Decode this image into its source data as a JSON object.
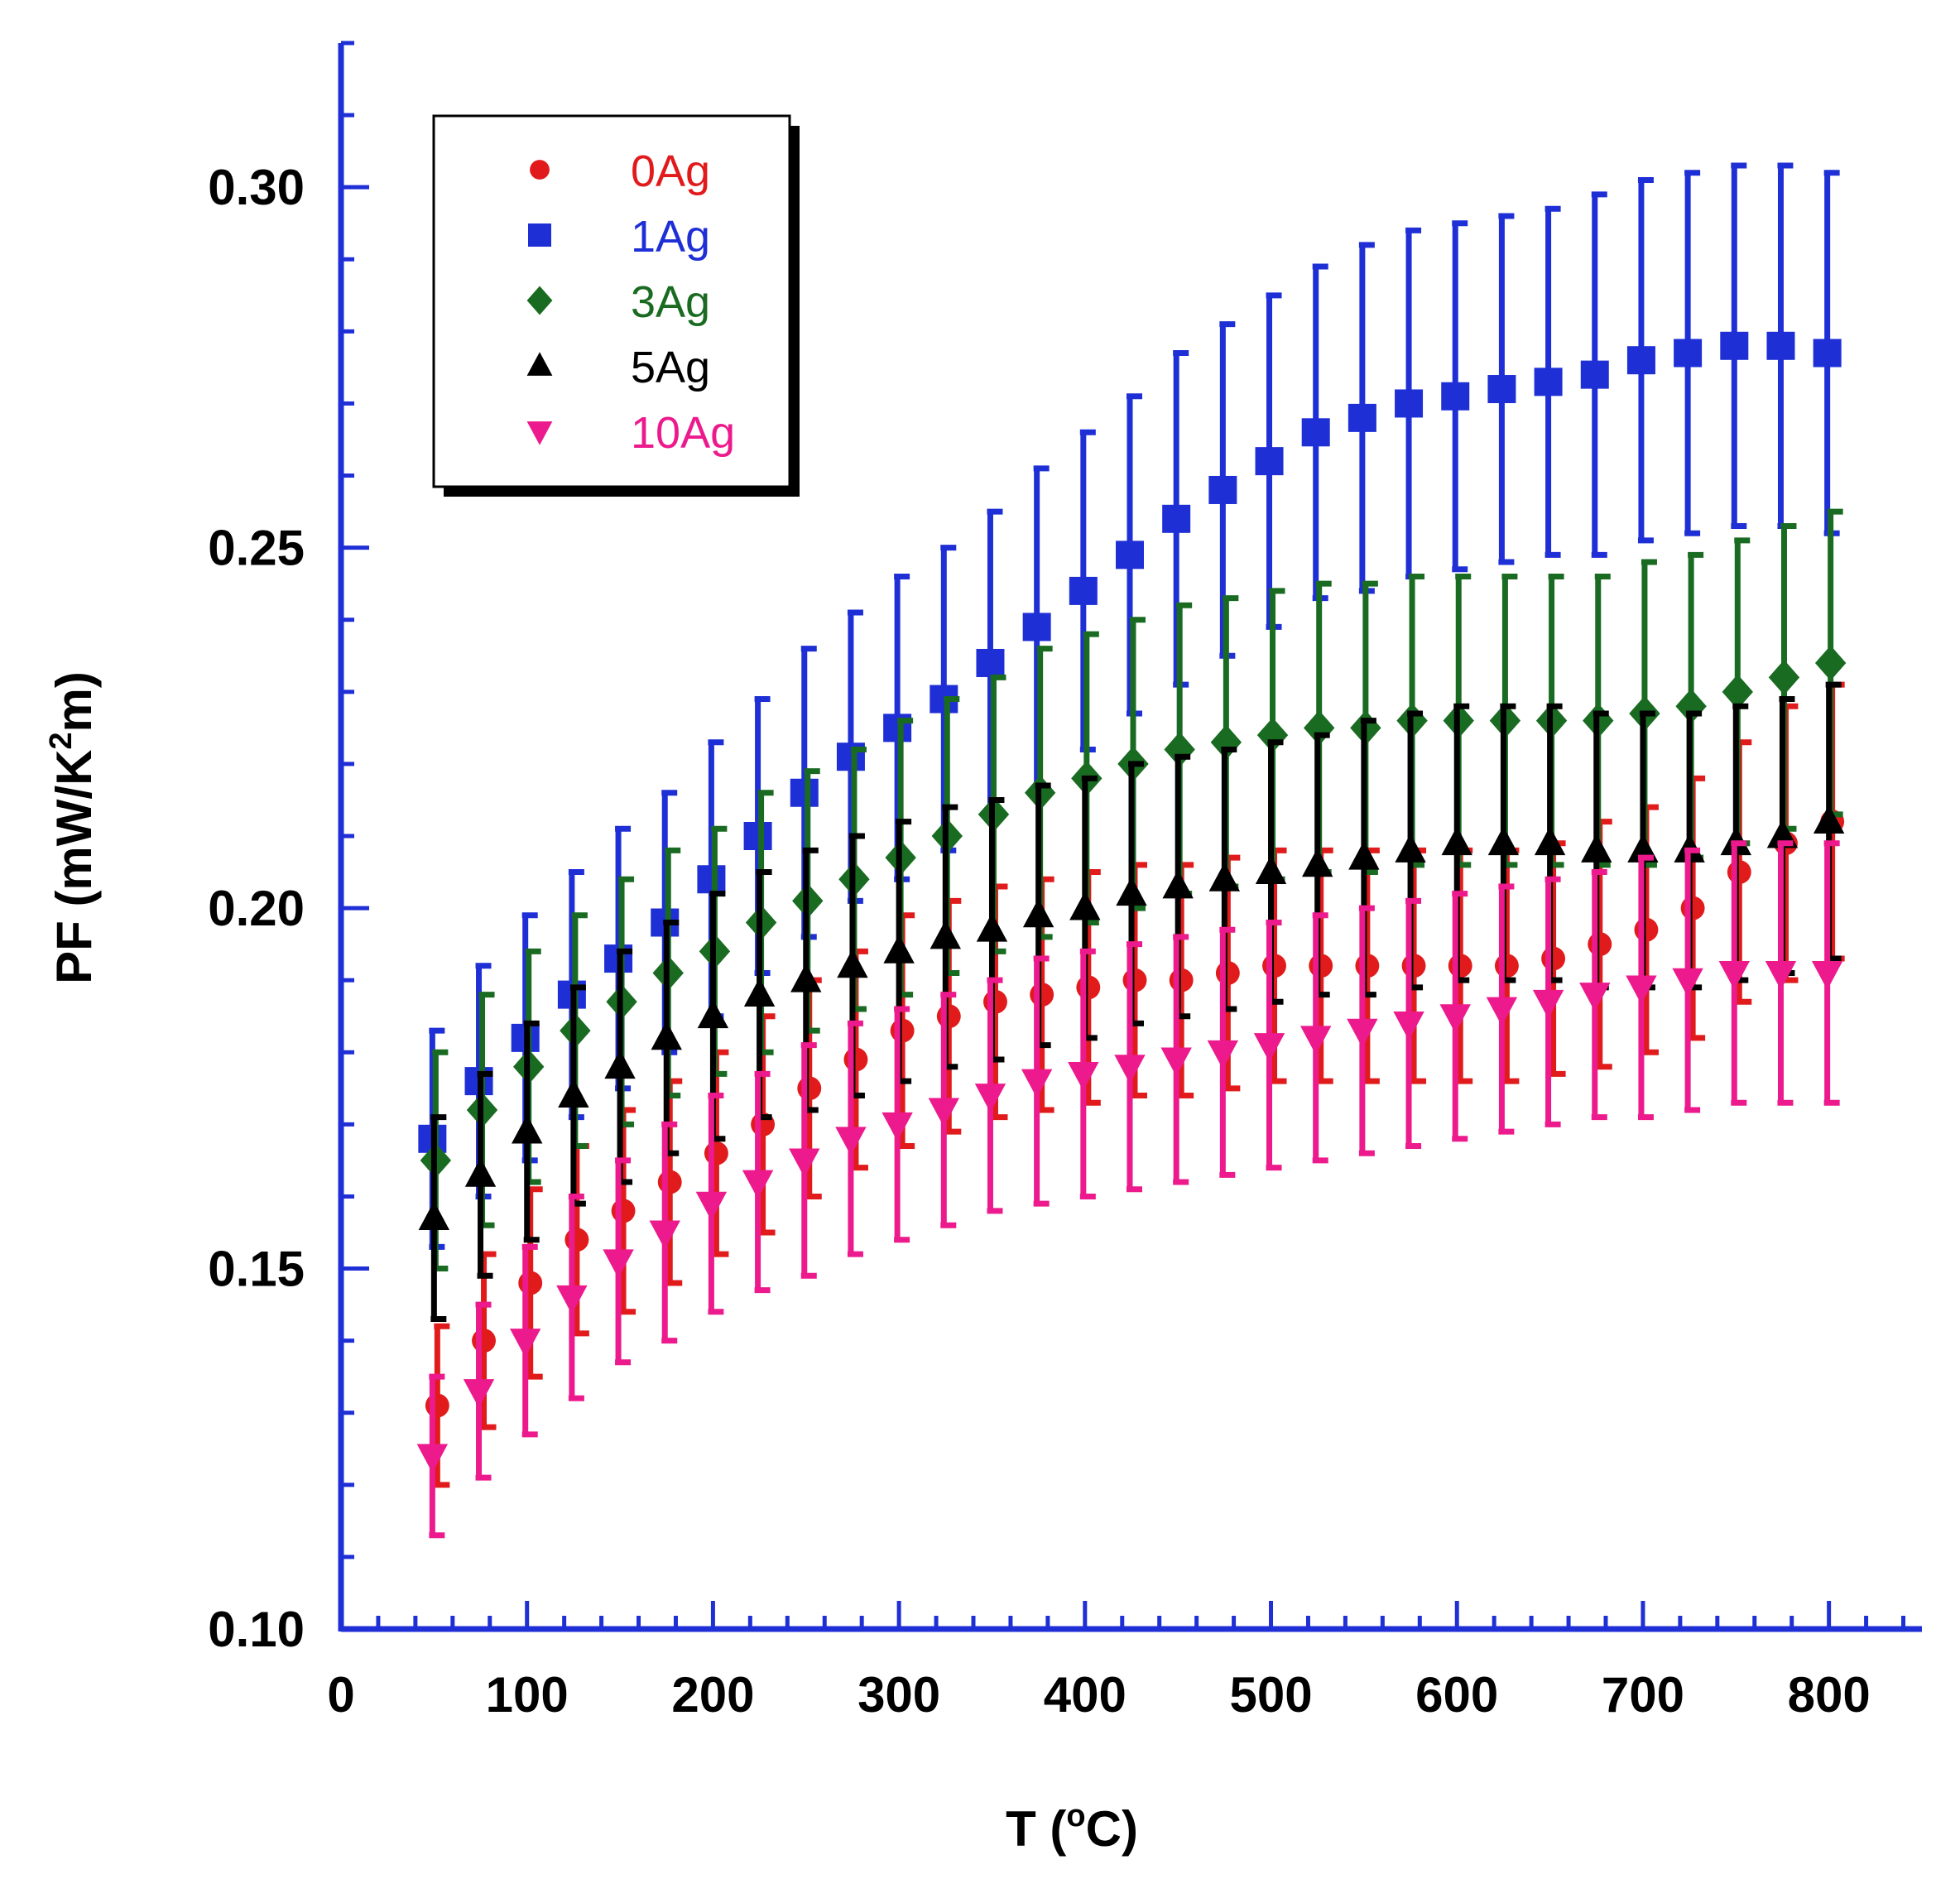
{
  "chart_data": {
    "type": "scatter",
    "title": "",
    "xlabel": {
      "base": "T (",
      "sup": "o",
      "rest": "C)"
    },
    "ylabel": {
      "base": "PF (mW/K",
      "sup": "2",
      "rest": "m)"
    },
    "xlim": [
      0,
      850
    ],
    "ylim": [
      0.1,
      0.32
    ],
    "x_ticks": [
      "0",
      "100",
      "200",
      "300",
      "400",
      "500",
      "600",
      "700",
      "800"
    ],
    "y_ticks": [
      "0.10",
      "0.15",
      "0.20",
      "0.25",
      "0.30"
    ],
    "grid": false,
    "legend_position": "top-left",
    "x": [
      50,
      75,
      100,
      125,
      150,
      175,
      200,
      225,
      250,
      275,
      300,
      325,
      350,
      375,
      400,
      425,
      450,
      475,
      500,
      525,
      550,
      575,
      600,
      625,
      650,
      675,
      700,
      725,
      750,
      775,
      800
    ],
    "series": [
      {
        "name": "0Ag",
        "color": "#e11b1b",
        "marker": "circle",
        "x_offset": 4,
        "values": [
          0.131,
          0.14,
          0.148,
          0.154,
          0.158,
          0.162,
          0.166,
          0.17,
          0.175,
          0.179,
          0.183,
          0.185,
          0.187,
          0.188,
          0.189,
          0.19,
          0.19,
          0.191,
          0.192,
          0.192,
          0.192,
          0.192,
          0.192,
          0.192,
          0.193,
          0.195,
          0.197,
          0.2,
          0.205,
          0.209,
          0.212
        ],
        "errors": [
          0.011,
          0.012,
          0.013,
          0.013,
          0.014,
          0.014,
          0.014,
          0.015,
          0.015,
          0.015,
          0.016,
          0.016,
          0.016,
          0.016,
          0.016,
          0.016,
          0.016,
          0.016,
          0.016,
          0.016,
          0.016,
          0.016,
          0.016,
          0.016,
          0.016,
          0.017,
          0.017,
          0.018,
          0.018,
          0.019,
          0.019
        ]
      },
      {
        "name": "1Ag",
        "color": "#1f2fd6",
        "marker": "square",
        "x_offset": -2,
        "values": [
          0.168,
          0.176,
          0.182,
          0.188,
          0.193,
          0.198,
          0.204,
          0.21,
          0.216,
          0.221,
          0.225,
          0.229,
          0.234,
          0.239,
          0.244,
          0.249,
          0.254,
          0.258,
          0.262,
          0.266,
          0.268,
          0.27,
          0.271,
          0.272,
          0.273,
          0.274,
          0.276,
          0.277,
          0.278,
          0.278,
          0.277
        ],
        "errors": [
          0.015,
          0.016,
          0.017,
          0.017,
          0.018,
          0.018,
          0.019,
          0.019,
          0.02,
          0.02,
          0.021,
          0.021,
          0.021,
          0.022,
          0.022,
          0.022,
          0.023,
          0.023,
          0.023,
          0.023,
          0.024,
          0.024,
          0.024,
          0.024,
          0.024,
          0.025,
          0.025,
          0.025,
          0.025,
          0.025,
          0.025
        ]
      },
      {
        "name": "3Ag",
        "color": "#1a6b22",
        "marker": "diamond",
        "x_offset": 2,
        "values": [
          0.165,
          0.172,
          0.178,
          0.183,
          0.187,
          0.191,
          0.194,
          0.198,
          0.201,
          0.204,
          0.207,
          0.21,
          0.213,
          0.216,
          0.218,
          0.22,
          0.222,
          0.223,
          0.224,
          0.225,
          0.225,
          0.226,
          0.226,
          0.226,
          0.226,
          0.226,
          0.227,
          0.228,
          0.23,
          0.232,
          0.234
        ],
        "errors": [
          0.015,
          0.016,
          0.016,
          0.016,
          0.017,
          0.017,
          0.017,
          0.018,
          0.018,
          0.018,
          0.019,
          0.019,
          0.019,
          0.02,
          0.02,
          0.02,
          0.02,
          0.02,
          0.02,
          0.02,
          0.02,
          0.02,
          0.02,
          0.02,
          0.02,
          0.02,
          0.021,
          0.021,
          0.021,
          0.021,
          0.021
        ]
      },
      {
        "name": "5Ag",
        "color": "#000000",
        "marker": "triangle-up",
        "x_offset": 0,
        "values": [
          0.157,
          0.163,
          0.169,
          0.174,
          0.178,
          0.182,
          0.185,
          0.188,
          0.19,
          0.192,
          0.194,
          0.196,
          0.197,
          0.199,
          0.2,
          0.202,
          0.203,
          0.204,
          0.205,
          0.206,
          0.207,
          0.208,
          0.209,
          0.209,
          0.209,
          0.208,
          0.208,
          0.208,
          0.209,
          0.21,
          0.212
        ],
        "errors": [
          0.014,
          0.014,
          0.015,
          0.015,
          0.016,
          0.016,
          0.017,
          0.017,
          0.018,
          0.018,
          0.018,
          0.018,
          0.018,
          0.018,
          0.018,
          0.018,
          0.018,
          0.018,
          0.018,
          0.018,
          0.019,
          0.019,
          0.019,
          0.019,
          0.019,
          0.019,
          0.019,
          0.019,
          0.019,
          0.019,
          0.019
        ]
      },
      {
        "name": "10Ag",
        "color": "#ec1a8c",
        "marker": "triangle-down",
        "x_offset": -2,
        "values": [
          0.124,
          0.133,
          0.14,
          0.146,
          0.151,
          0.155,
          0.159,
          0.162,
          0.165,
          0.168,
          0.17,
          0.172,
          0.174,
          0.176,
          0.177,
          0.178,
          0.179,
          0.18,
          0.181,
          0.182,
          0.183,
          0.184,
          0.185,
          0.186,
          0.187,
          0.188,
          0.189,
          0.19,
          0.191,
          0.191,
          0.191
        ],
        "errors": [
          0.011,
          0.012,
          0.013,
          0.014,
          0.014,
          0.015,
          0.015,
          0.015,
          0.016,
          0.016,
          0.016,
          0.016,
          0.016,
          0.017,
          0.017,
          0.017,
          0.017,
          0.017,
          0.017,
          0.017,
          0.017,
          0.017,
          0.017,
          0.017,
          0.017,
          0.017,
          0.018,
          0.018,
          0.018,
          0.018,
          0.018
        ]
      }
    ]
  }
}
